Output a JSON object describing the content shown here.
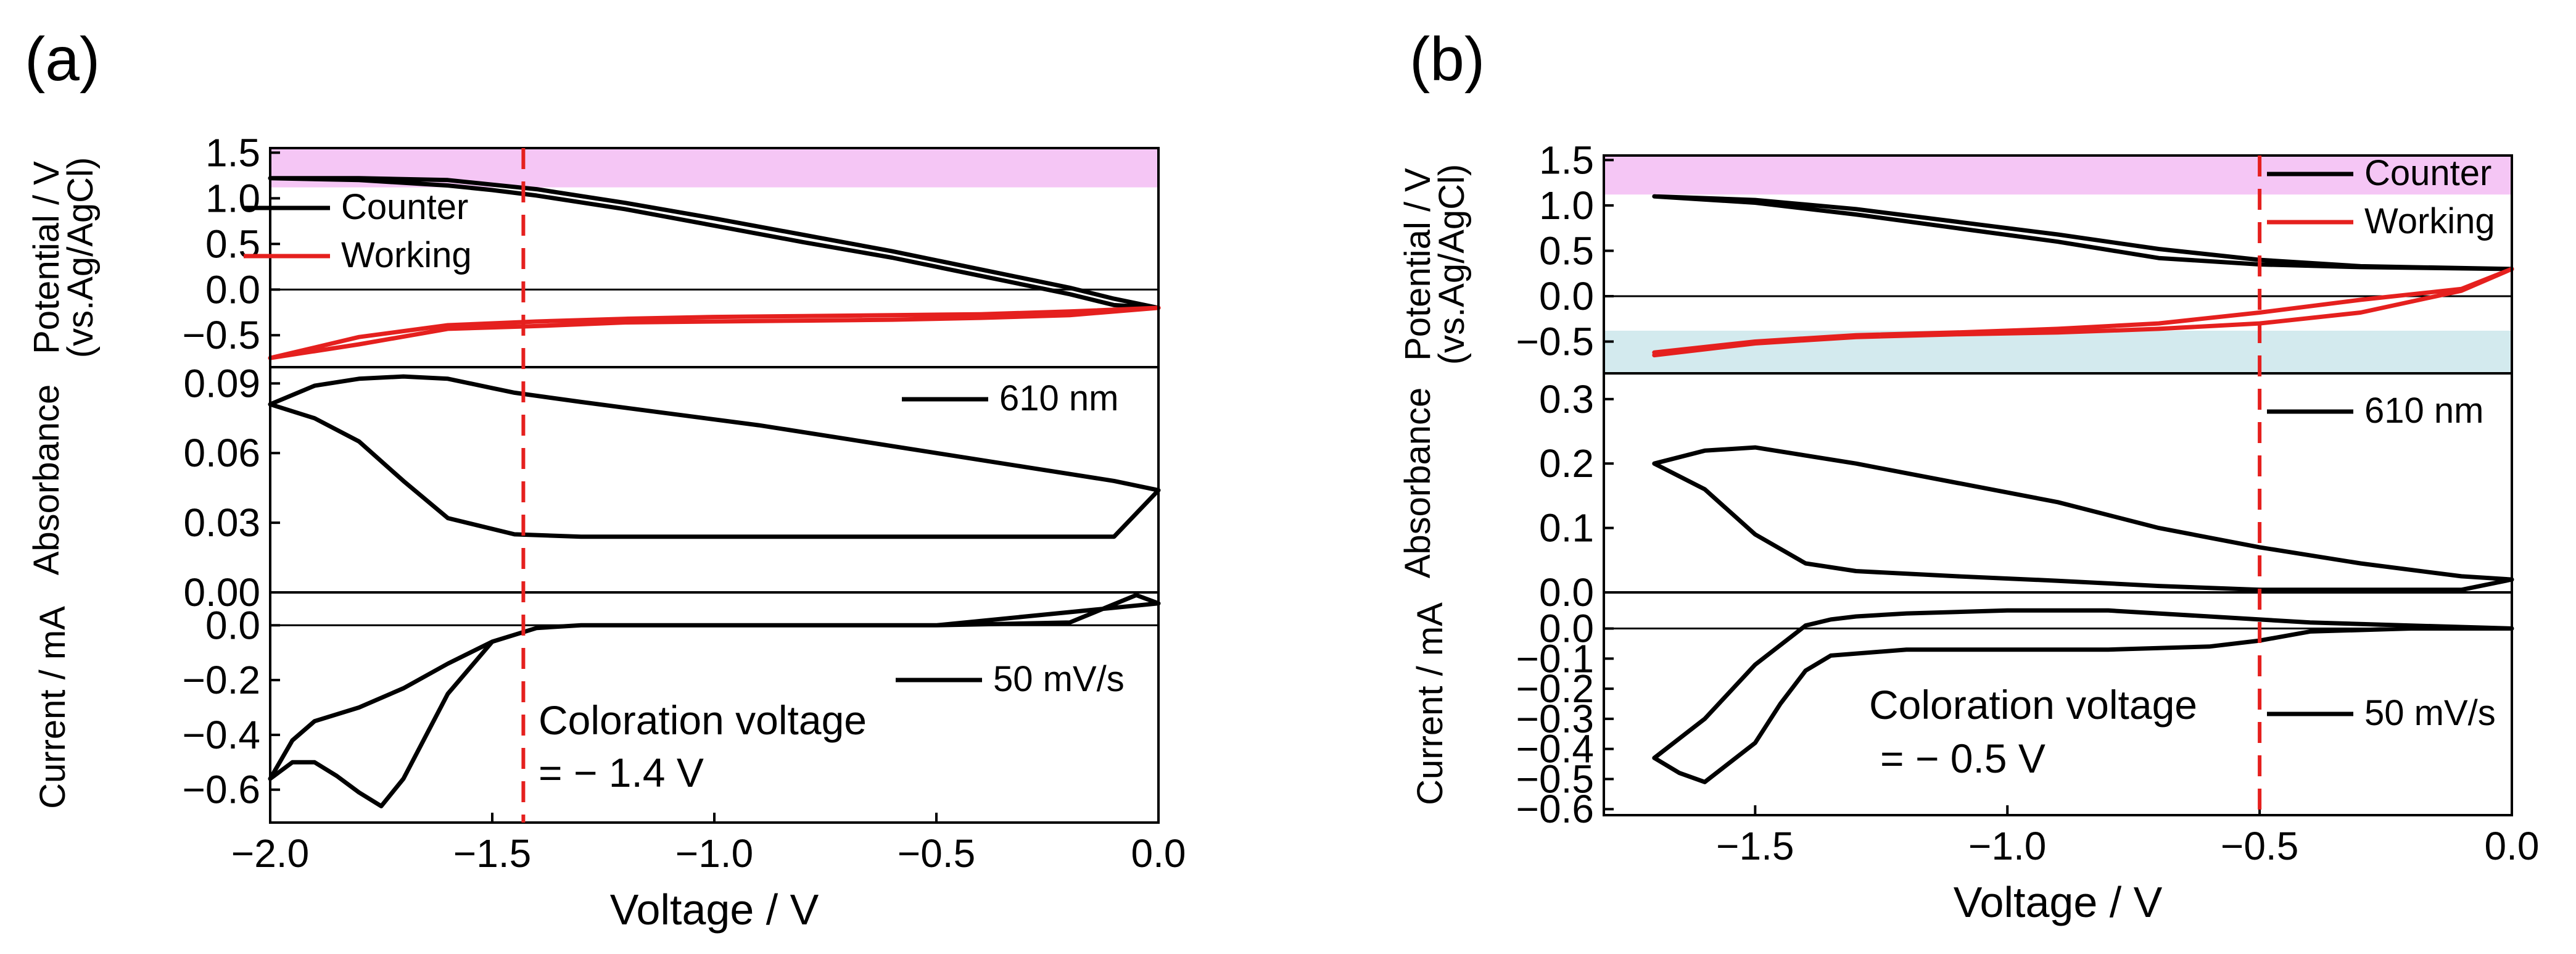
{
  "colors": {
    "counter": "#000000",
    "working": "#e5201e",
    "pink_band": "#f5c6f5",
    "blue_band": "#d3eaee",
    "vline": "#e5201e"
  },
  "chart_data": [
    {
      "type": "line",
      "panel_label": "(a)",
      "xlabel": "Voltage / V",
      "xlim": [
        -2.0,
        0.0
      ],
      "xticks": [
        "-2.0",
        "-1.5",
        "-1.0",
        "-0.5",
        "0.0"
      ],
      "coloration_voltage": -1.43,
      "annotation_line1": "Coloration voltage",
      "annotation_line2": "= − 1.4 V",
      "subplots": [
        {
          "name": "potential",
          "ylabel_line1": "Potential / V",
          "ylabel_line2": "(vs.Ag/AgCl)",
          "ylim": [
            -0.85,
            1.55
          ],
          "yticks": [
            "1.5",
            "1.0",
            "0.5",
            "0.0",
            "-0.5"
          ],
          "band": {
            "from": 1.12,
            "to": 1.55,
            "color": "pink"
          },
          "zero_line": true,
          "legend": [
            "Counter",
            "Working"
          ],
          "series": [
            {
              "name": "Counter",
              "color": "counter",
              "x": [
                -2.0,
                -1.8,
                -1.6,
                -1.5,
                -1.4,
                -1.2,
                -1.0,
                -0.8,
                -0.6,
                -0.4,
                -0.2,
                -0.1,
                0.0,
                -0.1,
                -0.2,
                -0.4,
                -0.6,
                -0.8,
                -1.0,
                -1.2,
                -1.4,
                -1.5,
                -1.6,
                -1.8,
                -2.0
              ],
              "y": [
                1.22,
                1.22,
                1.2,
                1.15,
                1.1,
                0.95,
                0.78,
                0.6,
                0.42,
                0.22,
                0.02,
                -0.1,
                -0.2,
                -0.17,
                -0.05,
                0.15,
                0.35,
                0.52,
                0.7,
                0.88,
                1.03,
                1.09,
                1.14,
                1.2,
                1.22
              ]
            },
            {
              "name": "Working",
              "color": "working",
              "x": [
                -2.0,
                -1.8,
                -1.6,
                -1.4,
                -1.2,
                -1.0,
                -0.8,
                -0.6,
                -0.4,
                -0.2,
                0.0,
                -0.2,
                -0.4,
                -0.6,
                -0.8,
                -1.0,
                -1.2,
                -1.4,
                -1.6,
                -1.8,
                -2.0
              ],
              "y": [
                -0.75,
                -0.6,
                -0.43,
                -0.4,
                -0.36,
                -0.35,
                -0.34,
                -0.33,
                -0.31,
                -0.28,
                -0.2,
                -0.24,
                -0.27,
                -0.28,
                -0.29,
                -0.3,
                -0.32,
                -0.35,
                -0.39,
                -0.52,
                -0.75
              ]
            }
          ]
        },
        {
          "name": "absorbance",
          "ylabel_line1": "Absorbance",
          "ylim": [
            0.0,
            0.097
          ],
          "yticks": [
            "0.09",
            "0.06",
            "0.03",
            "0.00"
          ],
          "legend": [
            "610 nm"
          ],
          "series": [
            {
              "name": "610 nm",
              "color": "counter",
              "x": [
                -2.0,
                -1.9,
                -1.8,
                -1.7,
                -1.6,
                -1.5,
                -1.45,
                -1.3,
                -1.1,
                -0.9,
                -0.7,
                -0.5,
                -0.3,
                -0.1,
                0.0,
                -0.1,
                -0.3,
                -0.5,
                -0.7,
                -0.9,
                -1.1,
                -1.3,
                -1.45,
                -1.6,
                -1.7,
                -1.8,
                -1.9,
                -2.0
              ],
              "y": [
                0.081,
                0.089,
                0.092,
                0.093,
                0.092,
                0.088,
                0.086,
                0.082,
                0.077,
                0.072,
                0.066,
                0.06,
                0.054,
                0.048,
                0.044,
                0.024,
                0.024,
                0.024,
                0.024,
                0.024,
                0.024,
                0.024,
                0.025,
                0.032,
                0.048,
                0.065,
                0.075,
                0.081
              ]
            }
          ]
        },
        {
          "name": "current",
          "ylabel_line1": "Current / mA",
          "ylim": [
            -0.72,
            0.12
          ],
          "yticks": [
            "0.0",
            "-0.2",
            "-0.4",
            "-0.6"
          ],
          "zero_line": true,
          "legend": [
            "50 mV/s"
          ],
          "series": [
            {
              "name": "50 mV/s",
              "color": "counter",
              "x": [
                -2.0,
                -1.95,
                -1.9,
                -1.85,
                -1.8,
                -1.75,
                -1.7,
                -1.6,
                -1.5,
                -1.4,
                -1.3,
                -1.0,
                -0.5,
                -0.2,
                -0.05,
                0.0,
                -0.5,
                -1.0,
                -1.3,
                -1.4,
                -1.5,
                -1.6,
                -1.7,
                -1.8,
                -1.9,
                -1.95,
                -2.0
              ],
              "y": [
                -0.56,
                -0.5,
                -0.5,
                -0.55,
                -0.61,
                -0.66,
                -0.56,
                -0.25,
                -0.06,
                -0.01,
                0.0,
                0.0,
                0.0,
                0.01,
                0.11,
                0.08,
                0.0,
                0.0,
                0.0,
                -0.01,
                -0.06,
                -0.14,
                -0.23,
                -0.3,
                -0.35,
                -0.42,
                -0.56
              ]
            }
          ]
        }
      ]
    },
    {
      "type": "line",
      "panel_label": "(b)",
      "xlabel": "Voltage / V",
      "xlim": [
        -1.8,
        0.0
      ],
      "xticks": [
        "-1.5",
        "-1.0",
        "-0.5",
        "0.0"
      ],
      "coloration_voltage": -0.5,
      "annotation_line1": "Coloration voltage",
      "annotation_line2": "= − 0.5 V",
      "subplots": [
        {
          "name": "potential",
          "ylabel_line1": "Potential / V",
          "ylabel_line2": "(vs.Ag/AgCl)",
          "ylim": [
            -0.85,
            1.55
          ],
          "yticks": [
            "1.5",
            "1.0",
            "0.5",
            "0.0",
            "-0.5"
          ],
          "band": {
            "from": 1.12,
            "to": 1.55,
            "color": "pink"
          },
          "band2": {
            "from": -0.85,
            "to": -0.38,
            "color": "blue"
          },
          "zero_line": true,
          "legend": [
            "Counter",
            "Working"
          ],
          "series": [
            {
              "name": "Counter",
              "color": "counter",
              "x": [
                -1.7,
                -1.5,
                -1.3,
                -1.1,
                -0.9,
                -0.7,
                -0.5,
                -0.3,
                0.0,
                -0.3,
                -0.5,
                -0.7,
                -0.9,
                -1.1,
                -1.3,
                -1.5,
                -1.7
              ],
              "y": [
                1.1,
                1.06,
                0.96,
                0.82,
                0.68,
                0.52,
                0.4,
                0.33,
                0.3,
                0.32,
                0.35,
                0.42,
                0.6,
                0.75,
                0.9,
                1.03,
                1.1
              ]
            },
            {
              "name": "Working",
              "color": "working",
              "x": [
                -1.7,
                -1.5,
                -1.3,
                -1.1,
                -0.9,
                -0.7,
                -0.5,
                -0.3,
                -0.1,
                0.0,
                -0.1,
                -0.3,
                -0.5,
                -0.7,
                -0.9,
                -1.1,
                -1.3,
                -1.5,
                -1.7
              ],
              "y": [
                -0.65,
                -0.52,
                -0.45,
                -0.42,
                -0.4,
                -0.36,
                -0.3,
                -0.18,
                0.06,
                0.3,
                0.08,
                -0.04,
                -0.18,
                -0.3,
                -0.36,
                -0.4,
                -0.43,
                -0.5,
                -0.62
              ]
            }
          ]
        },
        {
          "name": "absorbance",
          "ylabel_line1": "Absorbance",
          "ylim": [
            0.0,
            0.34
          ],
          "yticks": [
            "0.3",
            "0.2",
            "0.1",
            "0.0"
          ],
          "legend": [
            "610 nm"
          ],
          "series": [
            {
              "name": "610 nm",
              "color": "counter",
              "x": [
                -1.7,
                -1.6,
                -1.5,
                -1.3,
                -1.1,
                -0.9,
                -0.7,
                -0.5,
                -0.3,
                -0.1,
                0.0,
                -0.1,
                -0.3,
                -0.5,
                -0.7,
                -0.9,
                -1.1,
                -1.3,
                -1.4,
                -1.5,
                -1.6,
                -1.7
              ],
              "y": [
                0.2,
                0.22,
                0.225,
                0.2,
                0.17,
                0.14,
                0.1,
                0.07,
                0.045,
                0.025,
                0.02,
                0.004,
                0.004,
                0.004,
                0.01,
                0.018,
                0.025,
                0.033,
                0.045,
                0.09,
                0.16,
                0.2
              ]
            }
          ]
        },
        {
          "name": "current",
          "ylabel_line1": "Current / mA",
          "ylim": [
            -0.62,
            0.12
          ],
          "yticks": [
            "0.0",
            "-0.1",
            "-0.2",
            "-0.3",
            "-0.4",
            "-0.5",
            "-0.6"
          ],
          "zero_line": true,
          "legend": [
            "50 mV/s"
          ],
          "series": [
            {
              "name": "50 mV/s",
              "color": "counter",
              "x": [
                -1.7,
                -1.65,
                -1.6,
                -1.5,
                -1.45,
                -1.4,
                -1.35,
                -1.2,
                -1.0,
                -0.8,
                -0.6,
                -0.5,
                -0.4,
                -0.2,
                0.0,
                -0.2,
                -0.4,
                -0.5,
                -0.6,
                -0.8,
                -1.0,
                -1.2,
                -1.3,
                -1.35,
                -1.4,
                -1.5,
                -1.6,
                -1.7
              ],
              "y": [
                -0.43,
                -0.48,
                -0.51,
                -0.38,
                -0.25,
                -0.14,
                -0.09,
                -0.07,
                -0.07,
                -0.07,
                -0.06,
                -0.04,
                -0.01,
                0.0,
                0.0,
                0.01,
                0.02,
                0.03,
                0.04,
                0.06,
                0.06,
                0.05,
                0.04,
                0.03,
                0.01,
                -0.12,
                -0.3,
                -0.43
              ]
            }
          ]
        }
      ]
    }
  ]
}
